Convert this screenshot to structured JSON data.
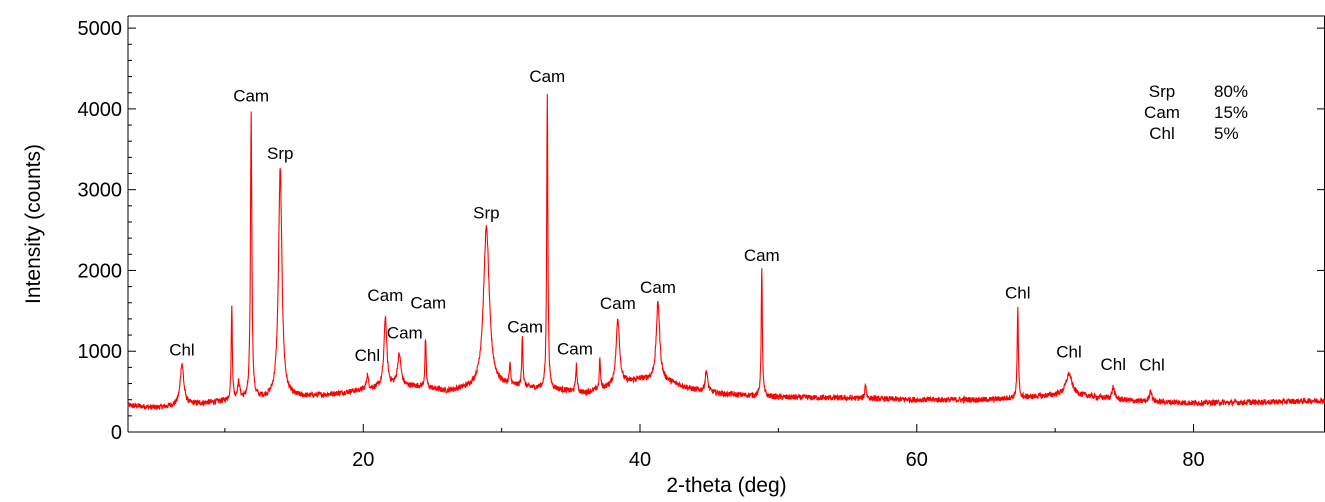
{
  "chart_data": {
    "type": "line",
    "title": "",
    "xlabel": "2-theta (deg)",
    "ylabel": "Intensity (counts)",
    "xlim": [
      3,
      89.5
    ],
    "ylim": [
      0,
      5150
    ],
    "x_ticks": [
      20,
      40,
      60,
      80
    ],
    "y_ticks": [
      0,
      1000,
      2000,
      3000,
      4000,
      5000
    ],
    "grid": false,
    "series": [
      {
        "color": "#ff0000",
        "baseline": [
          [
            3,
            330
          ],
          [
            5,
            300
          ],
          [
            8,
            350
          ],
          [
            10,
            380
          ],
          [
            12,
            400
          ],
          [
            14,
            420
          ],
          [
            16,
            440
          ],
          [
            18,
            470
          ],
          [
            20,
            520
          ],
          [
            22,
            560
          ],
          [
            24,
            560
          ],
          [
            26,
            500
          ],
          [
            27,
            520
          ],
          [
            30,
            560
          ],
          [
            34,
            520
          ],
          [
            36,
            480
          ],
          [
            38,
            560
          ],
          [
            40,
            650
          ],
          [
            42,
            620
          ],
          [
            44,
            520
          ],
          [
            46,
            470
          ],
          [
            50,
            430
          ],
          [
            55,
            420
          ],
          [
            60,
            400
          ],
          [
            65,
            400
          ],
          [
            68,
            430
          ],
          [
            71,
            470
          ],
          [
            73,
            430
          ],
          [
            76,
            380
          ],
          [
            80,
            360
          ],
          [
            85,
            370
          ],
          [
            89.5,
            390
          ]
        ],
        "peaks": [
          {
            "x": 6.9,
            "y": 850,
            "w": 0.15
          },
          {
            "x": 10.5,
            "y": 1530,
            "w": 0.05
          },
          {
            "x": 11.0,
            "y": 600,
            "w": 0.1
          },
          {
            "x": 11.9,
            "y": 3950,
            "w": 0.06
          },
          {
            "x": 14.0,
            "y": 3250,
            "w": 0.15
          },
          {
            "x": 20.3,
            "y": 700,
            "w": 0.08
          },
          {
            "x": 21.6,
            "y": 1420,
            "w": 0.12
          },
          {
            "x": 22.6,
            "y": 950,
            "w": 0.15
          },
          {
            "x": 24.5,
            "y": 1150,
            "w": 0.05
          },
          {
            "x": 28.9,
            "y": 2530,
            "w": 0.25
          },
          {
            "x": 30.6,
            "y": 800,
            "w": 0.06
          },
          {
            "x": 31.5,
            "y": 1180,
            "w": 0.05
          },
          {
            "x": 33.3,
            "y": 4200,
            "w": 0.05
          },
          {
            "x": 35.4,
            "y": 820,
            "w": 0.06
          },
          {
            "x": 37.1,
            "y": 900,
            "w": 0.05
          },
          {
            "x": 38.4,
            "y": 1400,
            "w": 0.15
          },
          {
            "x": 41.3,
            "y": 1600,
            "w": 0.15
          },
          {
            "x": 44.8,
            "y": 760,
            "w": 0.1
          },
          {
            "x": 48.8,
            "y": 2000,
            "w": 0.05
          },
          {
            "x": 56.3,
            "y": 600,
            "w": 0.06
          },
          {
            "x": 67.3,
            "y": 1530,
            "w": 0.05
          },
          {
            "x": 71.0,
            "y": 720,
            "w": 0.25
          },
          {
            "x": 74.2,
            "y": 560,
            "w": 0.1
          },
          {
            "x": 76.9,
            "y": 520,
            "w": 0.1
          }
        ]
      }
    ],
    "annotations": [
      {
        "text": "Chl",
        "x": 6.9,
        "y": 950
      },
      {
        "text": "Cam",
        "x": 11.9,
        "y": 4090
      },
      {
        "text": "Srp",
        "x": 14.0,
        "y": 3380
      },
      {
        "text": "Chl",
        "x": 20.3,
        "y": 880
      },
      {
        "text": "Cam",
        "x": 21.6,
        "y": 1620
      },
      {
        "text": "Cam",
        "x": 23.0,
        "y": 1160
      },
      {
        "text": "Cam",
        "x": 24.7,
        "y": 1530
      },
      {
        "text": "Srp",
        "x": 28.9,
        "y": 2640
      },
      {
        "text": "Cam",
        "x": 31.7,
        "y": 1230
      },
      {
        "text": "Cam",
        "x": 33.3,
        "y": 4330
      },
      {
        "text": "Cam",
        "x": 35.3,
        "y": 960
      },
      {
        "text": "Cam",
        "x": 38.4,
        "y": 1520
      },
      {
        "text": "Cam",
        "x": 41.3,
        "y": 1720
      },
      {
        "text": "Cam",
        "x": 48.8,
        "y": 2120
      },
      {
        "text": "Chl",
        "x": 67.3,
        "y": 1650
      },
      {
        "text": "Chl",
        "x": 71.0,
        "y": 920
      },
      {
        "text": "Chl",
        "x": 74.2,
        "y": 770
      },
      {
        "text": "Chl",
        "x": 77.0,
        "y": 760
      }
    ],
    "legend": {
      "placement": "top-right",
      "entries": [
        {
          "label": "Srp",
          "value": "80%"
        },
        {
          "label": "Cam",
          "value": "15%"
        },
        {
          "label": "Chl",
          "value": "5%"
        }
      ]
    }
  }
}
